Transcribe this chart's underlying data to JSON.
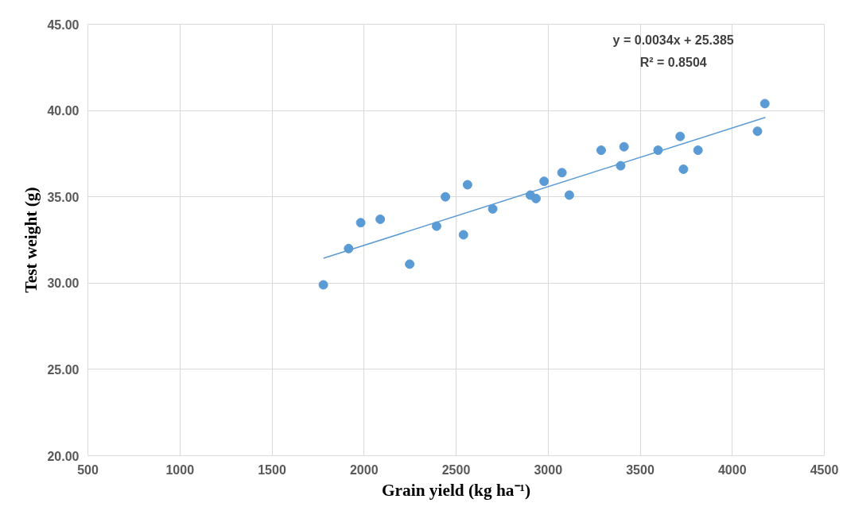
{
  "chart_data": {
    "type": "scatter",
    "xlabel": "Grain yield (kg ha⁻¹)",
    "ylabel": "Test weight (g)",
    "xlim": [
      500,
      4500
    ],
    "ylim": [
      20,
      45
    ],
    "xticks": [
      500,
      1000,
      1500,
      2000,
      2500,
      3000,
      3500,
      4000,
      4500
    ],
    "yticks": [
      {
        "value": 20,
        "label": "20.00"
      },
      {
        "value": 25,
        "label": "25.00"
      },
      {
        "value": 30,
        "label": "30.00"
      },
      {
        "value": 35,
        "label": "35.00"
      },
      {
        "value": 40,
        "label": "40.00"
      },
      {
        "value": 45,
        "label": "45.00"
      }
    ],
    "grid": true,
    "marker": "circle",
    "annotations": [
      "y = 0.0034x + 25.385",
      "R² = 0.8504"
    ],
    "series": [
      {
        "color": "#5b9bd5",
        "x": [
          1779,
          1916,
          1982,
          2088,
          2248,
          2394,
          2442,
          2540,
          2562,
          2699,
          2903,
          2934,
          2978,
          3075,
          3115,
          3288,
          3394,
          3412,
          3597,
          3717,
          3735,
          3814,
          4137,
          4177
        ],
        "values": [
          29.9,
          32.0,
          33.5,
          33.7,
          31.1,
          33.3,
          35.0,
          32.8,
          35.7,
          34.3,
          35.1,
          34.9,
          35.9,
          36.4,
          35.1,
          37.7,
          36.8,
          37.9,
          37.7,
          38.5,
          36.6,
          37.7,
          38.8,
          40.4
        ]
      },
      {
        "type": "line",
        "color": "#5b9bd5",
        "marker": "none",
        "line_style": "solid",
        "x": [
          1780,
          4180
        ],
        "values": [
          31.44,
          39.6
        ]
      }
    ]
  }
}
